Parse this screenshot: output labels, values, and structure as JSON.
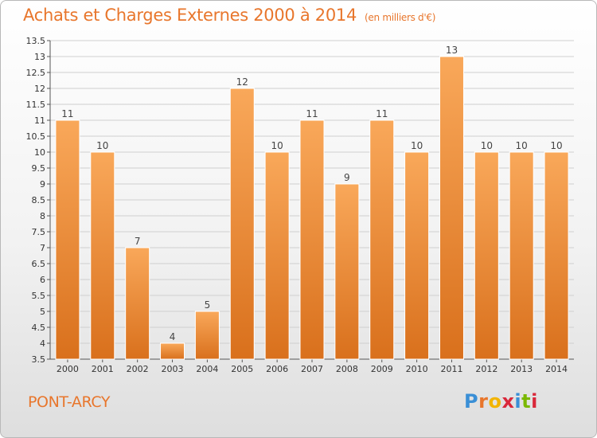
{
  "header": {
    "title": "Achats et Charges Externes 2000 à 2014",
    "unit_note": "(en milliers d'€)"
  },
  "footer": {
    "commune": "PONT-ARCY",
    "logo_text": "Proxiti"
  },
  "colors": {
    "bar_top": "#f9a85a",
    "bar_bottom": "#d9701c",
    "accent": "#e8762c",
    "grid": "#cfcfcf"
  },
  "chart_data": {
    "type": "bar",
    "title": "Achats et Charges Externes 2000 à 2014",
    "subtitle": "(en milliers d'€)",
    "categories": [
      "2000",
      "2001",
      "2002",
      "2003",
      "2004",
      "2005",
      "2006",
      "2007",
      "2008",
      "2009",
      "2010",
      "2011",
      "2012",
      "2013",
      "2014"
    ],
    "values": [
      11,
      10,
      7,
      4,
      5,
      12,
      10,
      11,
      9,
      11,
      10,
      13,
      10,
      10,
      10
    ],
    "value_labels": [
      "11",
      "10",
      "7",
      "4",
      "5",
      "12",
      "10",
      "11",
      "9",
      "11",
      "10",
      "13",
      "10",
      "10",
      "10"
    ],
    "ylim": [
      3.5,
      13.5
    ],
    "yticks": [
      "3.5",
      "4",
      "4.5",
      "5",
      "5.5",
      "6",
      "6.5",
      "7",
      "7.5",
      "8",
      "8.5",
      "9",
      "9.5",
      "10",
      "10.5",
      "11",
      "11.5",
      "12",
      "12.5",
      "13",
      "13.5"
    ],
    "grid": true,
    "legend": "none"
  }
}
